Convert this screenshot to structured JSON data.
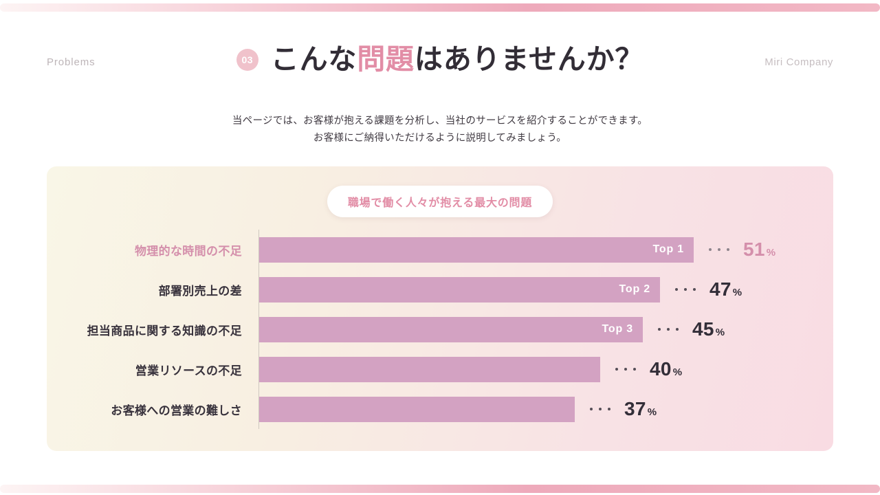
{
  "colors": {
    "accent_pink": "#e28da6",
    "bar": "#d3a2c2",
    "highlight": "#d48fab",
    "dark_text": "#332e38"
  },
  "header": {
    "left_label": "Problems",
    "badge": "03",
    "title_pre": "こんな",
    "title_highlight": "問題",
    "title_post": "はありませんか？",
    "right_label": "Miri Company"
  },
  "subtitle": {
    "line1": "当ページでは、お客様が抱える課題を分析し、当社のサービスを紹介することができます。",
    "line2": "お客様にご納得いただけるように説明してみましょう。"
  },
  "chart_data": {
    "type": "bar",
    "orientation": "horizontal",
    "title": "職場で働く人々が抱える最大の問題",
    "categories": [
      "物理的な時間の不足",
      "部署別売上の差",
      "担当商品に関する知識の不足",
      "営業リソースの不足",
      "お客様への営業の難しさ"
    ],
    "values": [
      51,
      47,
      45,
      40,
      37
    ],
    "unit": "%",
    "rank_labels": [
      "Top 1",
      "Top 2",
      "Top 3",
      "",
      ""
    ],
    "highlighted_index": 0,
    "xlim": [
      0,
      100
    ],
    "grid": false,
    "legend": false
  }
}
